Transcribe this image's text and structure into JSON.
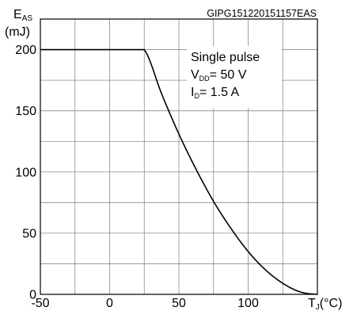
{
  "chart_data": {
    "type": "line",
    "code": "GIPG151220151157EAS",
    "ylabel": {
      "main": "E",
      "sub": "AS",
      "unit": "(mJ)"
    },
    "xlabel": {
      "main": "T",
      "sub": "J",
      "unit": "(°C)"
    },
    "xlim": [
      -50,
      150
    ],
    "ylim": [
      0,
      225
    ],
    "x_ticks": [
      "-50",
      "0",
      "50",
      "100"
    ],
    "y_ticks": [
      "0",
      "50",
      "100",
      "150",
      "200"
    ],
    "grid": true,
    "annotation": {
      "line1": "Single pulse",
      "line2_main": "V",
      "line2_sub": "DD",
      "line2_rest": "= 50 V",
      "line3_main": "I",
      "line3_sub": "D",
      "line3_rest": "= 1.5 A"
    },
    "series": [
      {
        "x": [
          -50,
          25,
          37.5,
          50,
          62.5,
          75,
          87.5,
          100,
          112.5,
          125,
          137.5,
          150
        ],
        "y": [
          200,
          200,
          164,
          131,
          102,
          76,
          54,
          35,
          20,
          9,
          2,
          0
        ]
      }
    ]
  }
}
